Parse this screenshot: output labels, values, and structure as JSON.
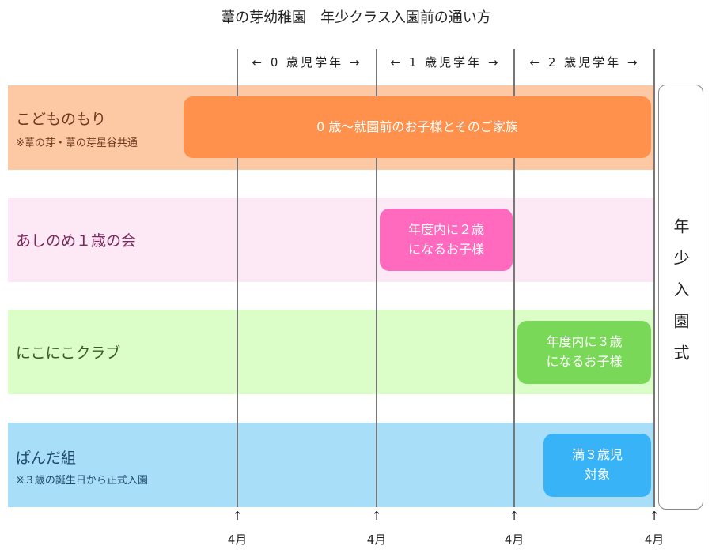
{
  "title": "葦の芽幼稚園　年少クラス入園前の通い方",
  "periods": [
    "← 0 歳児学年 →",
    "← 1 歳児学年 →",
    "← 2 歳児学年 →"
  ],
  "rows": [
    {
      "label": "こどものもり",
      "note": "※葦の芽・葦の芽星谷共通",
      "bg": "#fdc9a4",
      "color": "#6b3a1e",
      "box": "0 歳〜就園前のお子様とそのご家族",
      "box_color": "#ff914d"
    },
    {
      "label": "あしのめ１歳の会",
      "note": "",
      "bg": "#fde8f5",
      "color": "#7a2a5a",
      "box": "年度内に２歳\nになるお子様",
      "box_color": "#ff69be"
    },
    {
      "label": "にこにこクラブ",
      "note": "",
      "bg": "#dbfdc8",
      "color": "#3a5a1f",
      "box": "年度内に３歳\nになるお子様",
      "box_color": "#7ad858"
    },
    {
      "label": "ぱんだ組",
      "note": "※３歳の誕生日から正式入園",
      "bg": "#a9def9",
      "color": "#1e4a6a",
      "box": "満３歳児\n対象",
      "box_color": "#39b3f7"
    }
  ],
  "ceremony": "年少入園式",
  "arrow": "↑",
  "month": "4月"
}
